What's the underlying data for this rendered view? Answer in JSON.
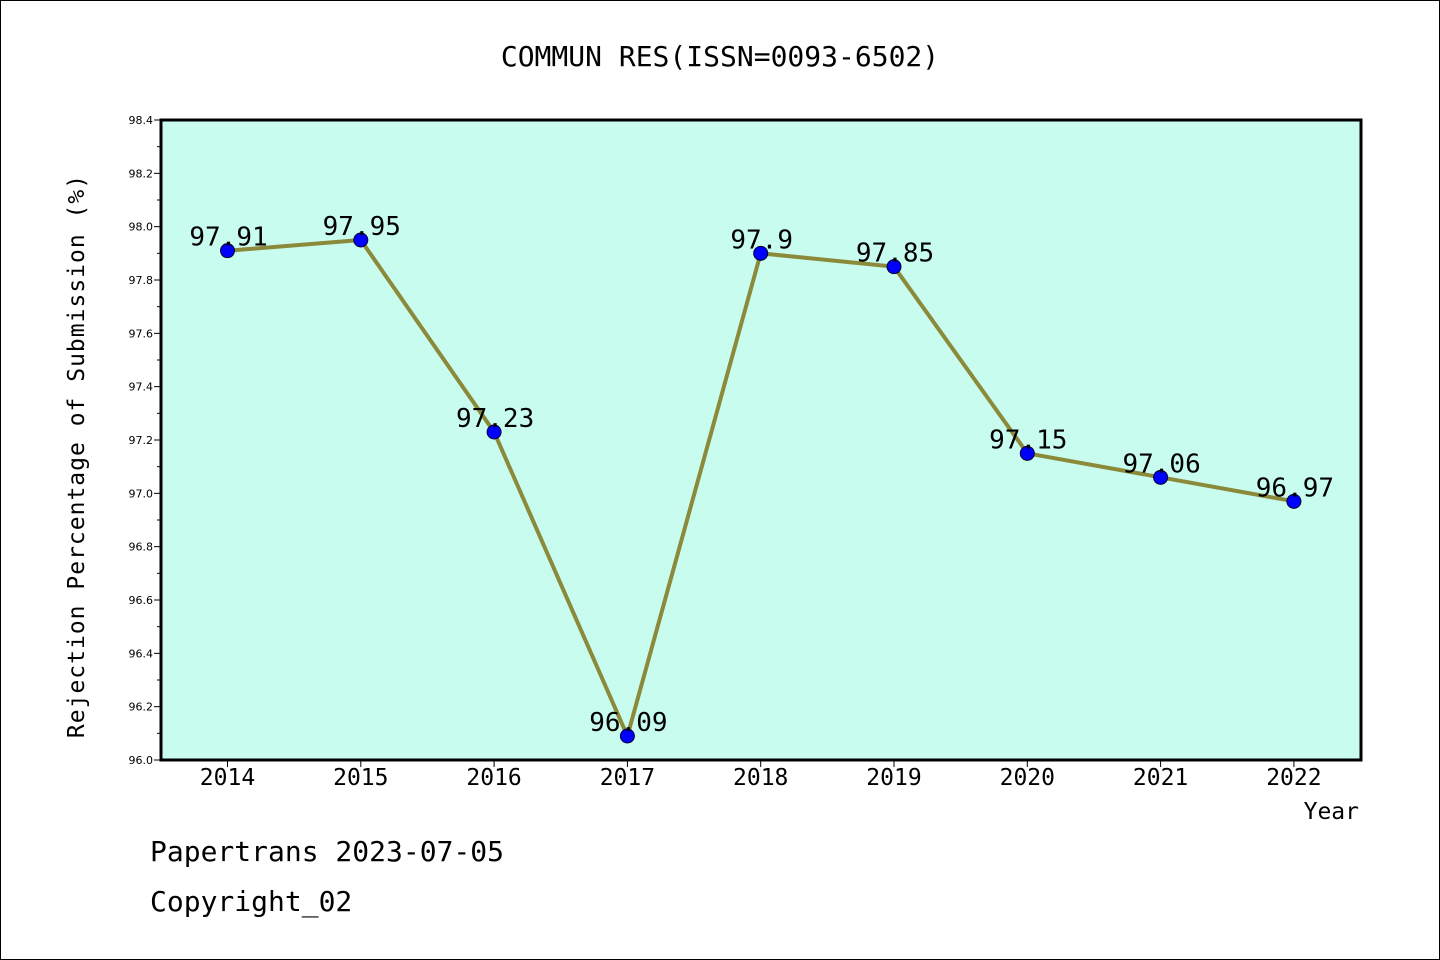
{
  "chart_data": {
    "type": "line",
    "title": "COMMUN RES(ISSN=0093-6502)",
    "xlabel": "Year",
    "ylabel": "Rejection Percentage of Submission (%)",
    "categories": [
      "2014",
      "2015",
      "2016",
      "2017",
      "2018",
      "2019",
      "2020",
      "2021",
      "2022"
    ],
    "values": [
      97.91,
      97.95,
      97.23,
      96.09,
      97.9,
      97.85,
      97.15,
      97.06,
      96.97
    ],
    "data_labels": [
      "97.91",
      "97.95",
      "97.23",
      "96.09",
      "97.9",
      "97.85",
      "97.15",
      "97.06",
      "96.97"
    ],
    "ylim": [
      96.0,
      98.4
    ],
    "yticks": [
      "96.0",
      "96.2",
      "96.4",
      "96.6",
      "96.8",
      "97.0",
      "97.2",
      "97.4",
      "97.6",
      "97.8",
      "98.0",
      "98.2",
      "98.4"
    ],
    "grid": false,
    "legend": "none",
    "colors": {
      "plot_background": "#c8fcee",
      "line": "#8b8a3a",
      "marker": "#0000ff"
    }
  },
  "footer": {
    "line1": "Papertrans 2023-07-05",
    "line2": "Copyright_02"
  }
}
